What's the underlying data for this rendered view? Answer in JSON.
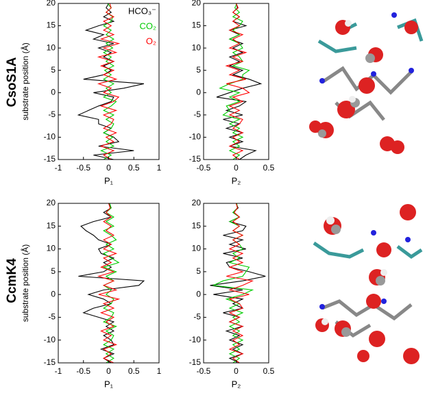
{
  "row_labels": [
    "CsoS1A",
    "CcmK4"
  ],
  "chart_data": [
    {
      "type": "line",
      "ylabel": "substrate position (Å)",
      "xlabel": "P₁",
      "xlim": [
        -1,
        1
      ],
      "xticks": [
        -1,
        -0.5,
        0,
        0.5,
        1
      ],
      "ylim": [
        -15,
        20
      ],
      "yticks": [
        -15,
        -10,
        -5,
        0,
        5,
        10,
        15,
        20
      ],
      "y": [
        -15,
        -14,
        -13,
        -12,
        -11,
        -10,
        -9,
        -8,
        -7,
        -6,
        -5,
        -4,
        -3,
        -2,
        -1,
        0,
        1,
        2,
        3,
        4,
        5,
        6,
        7,
        8,
        9,
        10,
        11,
        12,
        13,
        14,
        15,
        16,
        17,
        18,
        19,
        20
      ],
      "series": [
        {
          "name": "HCO₃⁻",
          "color": "#000000",
          "values": [
            0.1,
            -0.3,
            0.5,
            -0.2,
            0.2,
            0.1,
            -0.1,
            0.05,
            -0.2,
            -0.2,
            -0.6,
            -0.4,
            -0.2,
            0.05,
            0.1,
            -0.3,
            0.3,
            0.7,
            -0.5,
            -0.1,
            0.05,
            -0.1,
            0.1,
            -0.1,
            0.05,
            -0.2,
            0.1,
            -0.3,
            -0.1,
            -0.45,
            -0.2,
            0.1,
            -0.1,
            0.05,
            -0.05,
            0
          ]
        },
        {
          "name": "CO₂",
          "color": "#00cc00",
          "values": [
            -0.1,
            0.05,
            -0.15,
            0.1,
            -0.05,
            0.08,
            -0.1,
            0.05,
            0.1,
            -0.05,
            0.1,
            -0.1,
            0.05,
            0.15,
            -0.1,
            0.05,
            -0.05,
            0.1,
            -0.1,
            0.05,
            -0.08,
            0.1,
            -0.05,
            0.05,
            -0.1,
            0.08,
            -0.05,
            0.1,
            -0.05,
            0.05,
            -0.1,
            0.05,
            0.08,
            -0.05,
            0.05,
            -0.02
          ]
        },
        {
          "name": "O₂",
          "color": "#ff0000",
          "values": [
            0.05,
            -0.1,
            0.1,
            -0.15,
            0.1,
            -0.05,
            0.15,
            -0.1,
            0.05,
            0.1,
            -0.1,
            0.15,
            -0.15,
            0.1,
            0.2,
            -0.1,
            0.05,
            -0.2,
            0.15,
            -0.1,
            0.1,
            -0.15,
            0.1,
            -0.2,
            0.15,
            -0.1,
            0.2,
            -0.15,
            0.1,
            -0.1,
            0.05,
            -0.1,
            0.1,
            -0.05,
            0.05,
            0.02
          ]
        }
      ]
    },
    {
      "type": "line",
      "xlabel": "P₂",
      "xlim": [
        -0.5,
        0.5
      ],
      "xticks": [
        -0.5,
        0,
        0.5
      ],
      "ylim": [
        -15,
        20
      ],
      "yticks": [
        -15,
        -10,
        -5,
        0,
        5,
        10,
        15,
        20
      ],
      "y": [
        -15,
        -14,
        -13,
        -12,
        -11,
        -10,
        -9,
        -8,
        -7,
        -6,
        -5,
        -4,
        -3,
        -2,
        -1,
        0,
        1,
        2,
        3,
        4,
        5,
        6,
        7,
        8,
        9,
        10,
        11,
        12,
        13,
        14,
        15,
        16,
        17,
        18,
        19,
        20
      ],
      "series": [
        {
          "color": "#000000",
          "values": [
            0.05,
            0.15,
            0.3,
            -0.1,
            0.1,
            -0.1,
            0.1,
            -0.15,
            0.05,
            -0.2,
            0.1,
            -0.15,
            0.05,
            0.15,
            -0.3,
            -0.1,
            0.1,
            0.38,
            0.2,
            -0.05,
            0.1,
            -0.1,
            0.05,
            -0.1,
            0.1,
            -0.05,
            0.1,
            -0.1,
            0.05,
            -0.1,
            0.15,
            -0.05,
            0.05,
            -0.05,
            0.02,
            0
          ]
        },
        {
          "color": "#00cc00",
          "values": [
            -0.05,
            0.05,
            -0.1,
            0.05,
            -0.05,
            0.1,
            -0.05,
            0.05,
            -0.1,
            0.05,
            -0.2,
            -0.1,
            -0.15,
            0.05,
            -0.1,
            0.05,
            -0.25,
            -0.1,
            0.1,
            0.1,
            0.2,
            -0.05,
            0.1,
            0.05,
            -0.05,
            0.1,
            0.05,
            -0.1,
            0.05,
            -0.05,
            0.05,
            0.1,
            -0.05,
            0.05,
            -0.02,
            0.01
          ]
        },
        {
          "color": "#ff0000",
          "values": [
            0.05,
            -0.05,
            0.1,
            -0.1,
            0.05,
            -0.05,
            0.1,
            -0.05,
            0.05,
            0.1,
            -0.1,
            0.05,
            -0.1,
            0.1,
            -0.05,
            0.2,
            0.1,
            -0.15,
            0.15,
            -0.1,
            0.05,
            -0.15,
            0.1,
            -0.05,
            0.15,
            -0.1,
            0.05,
            -0.05,
            0.1,
            -0.1,
            0.05,
            -0.05,
            0.05,
            -0.05,
            0.03,
            0
          ]
        }
      ]
    },
    {
      "type": "line",
      "ylabel": "substrate position (Å)",
      "xlabel": "P₁",
      "xlim": [
        -1,
        1
      ],
      "xticks": [
        -1,
        -0.5,
        0,
        0.5,
        1
      ],
      "ylim": [
        -15,
        20
      ],
      "yticks": [
        -15,
        -10,
        -5,
        0,
        5,
        10,
        15,
        20
      ],
      "y": [
        -15,
        -14,
        -13,
        -12,
        -11,
        -10,
        -9,
        -8,
        -7,
        -6,
        -5,
        -4,
        -3,
        -2,
        -1,
        0,
        1,
        2,
        3,
        4,
        5,
        6,
        7,
        8,
        9,
        10,
        11,
        12,
        13,
        14,
        15,
        16,
        17,
        18,
        19,
        20
      ],
      "series": [
        {
          "color": "#000000",
          "values": [
            0.05,
            -0.1,
            0.1,
            -0.15,
            0.1,
            0.05,
            -0.1,
            0.1,
            -0.05,
            0.1,
            -0.2,
            -0.5,
            -0.3,
            0.05,
            -0.1,
            -0.4,
            -0.1,
            0.6,
            0.7,
            -0.6,
            -0.1,
            0.05,
            -0.1,
            0.1,
            -0.15,
            -0.2,
            0.05,
            -0.2,
            -0.3,
            -0.45,
            -0.55,
            -0.3,
            0.05,
            -0.1,
            0.05,
            0
          ]
        },
        {
          "color": "#00cc00",
          "values": [
            -0.05,
            0.1,
            -0.05,
            0.1,
            -0.1,
            0.05,
            0.1,
            -0.05,
            0.15,
            -0.1,
            0.05,
            0.1,
            -0.1,
            0.05,
            0.1,
            -0.05,
            0.05,
            -0.1,
            0.1,
            -0.05,
            0.15,
            -0.1,
            0.2,
            0.05,
            -0.1,
            0.1,
            -0.05,
            0.15,
            0.05,
            -0.1,
            0.1,
            -0.05,
            0.1,
            -0.05,
            0.05,
            0.02
          ]
        },
        {
          "color": "#ff0000",
          "values": [
            0.1,
            -0.1,
            0.05,
            -0.1,
            0.15,
            -0.1,
            0.05,
            -0.15,
            0.1,
            -0.05,
            0.1,
            -0.15,
            0.1,
            -0.1,
            0.2,
            -0.2,
            0.15,
            -0.1,
            0.1,
            -0.2,
            0.1,
            -0.15,
            0.05,
            -0.1,
            0.15,
            -0.1,
            0.05,
            -0.1,
            0.1,
            -0.05,
            0.05,
            -0.1,
            0.05,
            -0.05,
            0.03,
            0
          ]
        }
      ]
    },
    {
      "type": "line",
      "xlabel": "P₂",
      "xlim": [
        -0.5,
        0.5
      ],
      "xticks": [
        -0.5,
        0,
        0.5
      ],
      "ylim": [
        -15,
        20
      ],
      "yticks": [
        -15,
        -10,
        -5,
        0,
        5,
        10,
        15,
        20
      ],
      "y": [
        -15,
        -14,
        -13,
        -12,
        -11,
        -10,
        -9,
        -8,
        -7,
        -6,
        -5,
        -4,
        -3,
        -2,
        -1,
        0,
        1,
        2,
        3,
        4,
        5,
        6,
        7,
        8,
        9,
        10,
        11,
        12,
        13,
        14,
        15,
        16,
        17,
        18,
        19,
        20
      ],
      "series": [
        {
          "color": "#000000",
          "values": [
            0.05,
            -0.1,
            0.1,
            -0.05,
            0.1,
            -0.1,
            0.05,
            -0.15,
            0.1,
            -0.1,
            0.05,
            -0.2,
            0.1,
            -0.05,
            0.1,
            -0.35,
            0.1,
            -0.4,
            0.1,
            0.45,
            0.2,
            -0.1,
            -0.15,
            0.1,
            -0.2,
            0.15,
            -0.1,
            0.1,
            -0.2,
            0.1,
            0.15,
            -0.1,
            0.05,
            -0.05,
            0.03,
            0
          ]
        },
        {
          "color": "#00cc00",
          "values": [
            -0.05,
            0.05,
            -0.1,
            0.05,
            -0.05,
            0.1,
            -0.05,
            0.05,
            -0.1,
            0.05,
            -0.05,
            0.1,
            -0.1,
            0.05,
            -0.15,
            0.1,
            0.25,
            -0.35,
            -0.2,
            0.1,
            0.15,
            0.2,
            -0.1,
            0.05,
            -0.05,
            0.1,
            0.05,
            -0.05,
            0.1,
            -0.05,
            0.05,
            -0.1,
            0.05,
            -0.05,
            0.02,
            0.01
          ]
        },
        {
          "color": "#ff0000",
          "values": [
            0.05,
            -0.05,
            0.1,
            -0.1,
            0.05,
            -0.05,
            0.1,
            -0.05,
            0.1,
            -0.1,
            0.05,
            -0.1,
            0.1,
            0.05,
            -0.1,
            0.2,
            -0.1,
            0.1,
            0.25,
            -0.15,
            0.1,
            -0.1,
            0.1,
            -0.05,
            0.1,
            -0.1,
            0.05,
            -0.05,
            0.1,
            -0.05,
            0.05,
            -0.05,
            0.05,
            -0.03,
            0.02,
            0
          ]
        }
      ]
    }
  ]
}
